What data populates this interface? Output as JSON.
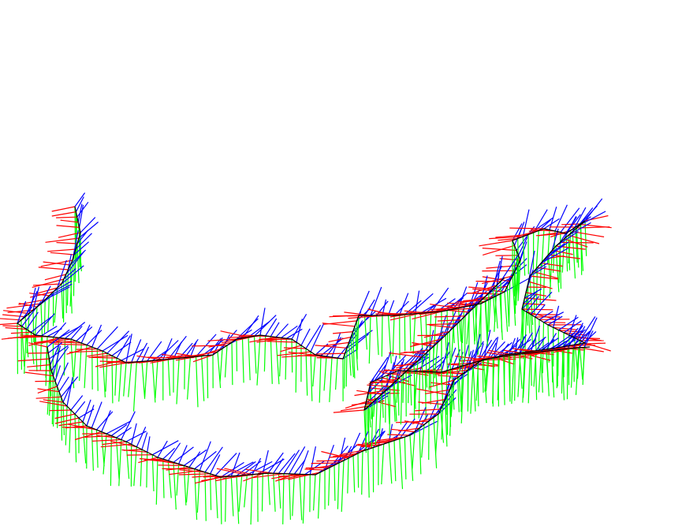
{
  "scene": {
    "background": "#ffffff",
    "trajectory_color": "#000000",
    "axis_colors": {
      "x": "#ff0000",
      "y": "#00ff00",
      "z": "#0000ff"
    }
  }
}
